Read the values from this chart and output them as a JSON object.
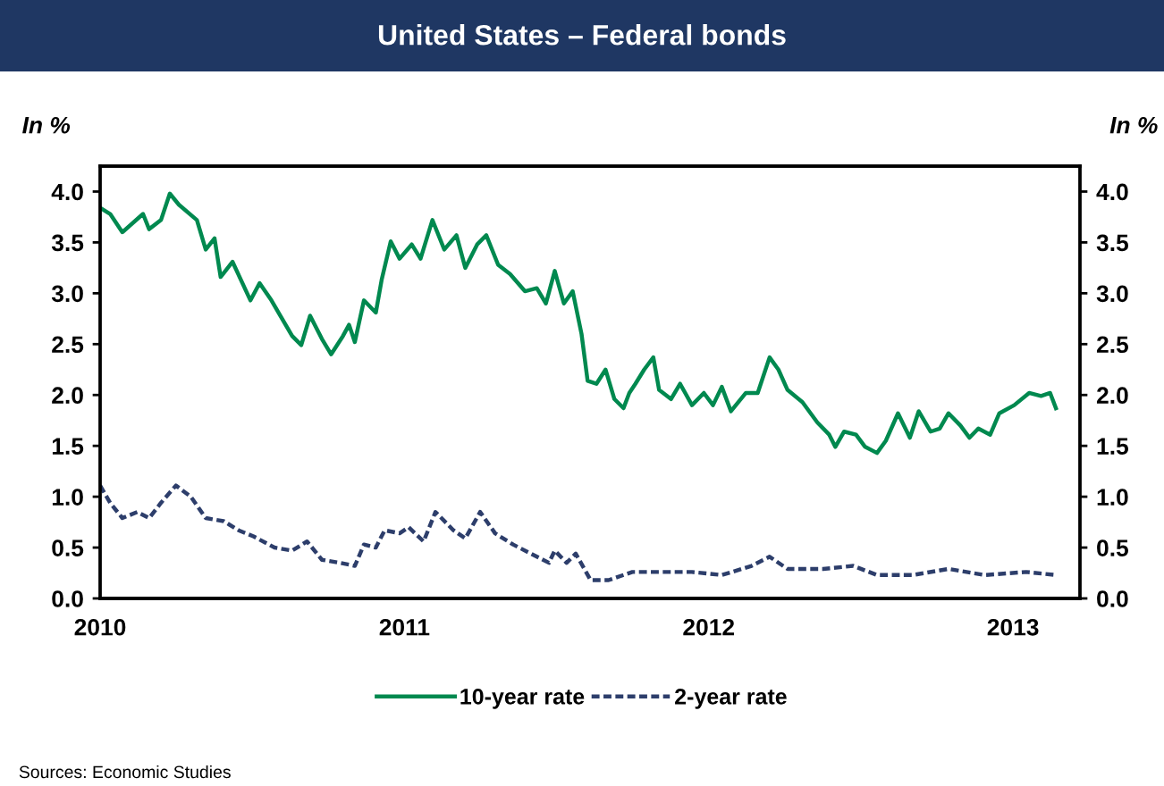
{
  "chart_data": {
    "type": "line",
    "title": "United States – Federal bonds",
    "ylabel": "In %",
    "y2label": "In %",
    "xlim": [
      2010,
      2013.22
    ],
    "xticks": [
      2010,
      2011,
      2012,
      2013
    ],
    "ylim": [
      0,
      4.25
    ],
    "yticks": [
      {
        "value": 0,
        "label": "0.0"
      },
      {
        "value": 0.5,
        "label": "0.5"
      },
      {
        "value": 1,
        "label": "1.0"
      },
      {
        "value": 1.5,
        "label": "1.5"
      },
      {
        "value": 2,
        "label": "2.0"
      },
      {
        "value": 2.5,
        "label": "2.5"
      },
      {
        "value": 3,
        "label": "3.0"
      },
      {
        "value": 3.5,
        "label": "3.5"
      },
      {
        "value": 4,
        "label": "4.0"
      }
    ],
    "y2lim": [
      0,
      4.25
    ],
    "y2ticks": [
      {
        "value": 0,
        "label": "0.0"
      },
      {
        "value": 0.5,
        "label": "0.5"
      },
      {
        "value": 1,
        "label": "1.0"
      },
      {
        "value": 1.5,
        "label": "1.5"
      },
      {
        "value": 2,
        "label": "2.0"
      },
      {
        "value": 2.5,
        "label": "2.5"
      },
      {
        "value": 3,
        "label": "3.0"
      },
      {
        "value": 3.5,
        "label": "3.5"
      },
      {
        "value": 4,
        "label": "4.0"
      }
    ],
    "grid": false,
    "legend": "bottom",
    "marker": "none",
    "annotations": [
      "Sources: Economic Studies"
    ],
    "series": [
      {
        "name": "10-year rate",
        "color": "#00894f",
        "line_style": "solid",
        "x": [
          2010.0,
          2010.033,
          2010.073,
          2010.141,
          2010.161,
          2010.2,
          2010.229,
          2010.259,
          2010.318,
          2010.347,
          2010.376,
          2010.396,
          2010.435,
          2010.494,
          2010.524,
          2010.563,
          2010.592,
          2010.631,
          2010.661,
          2010.69,
          2010.729,
          2010.759,
          2010.798,
          2010.818,
          2010.837,
          2010.867,
          2010.906,
          2010.925,
          2010.955,
          2010.984,
          2011.024,
          2011.053,
          2011.092,
          2011.131,
          2011.171,
          2011.2,
          2011.239,
          2011.269,
          2011.308,
          2011.347,
          2011.396,
          2011.435,
          2011.465,
          2011.494,
          2011.524,
          2011.553,
          2011.582,
          2011.602,
          2011.631,
          2011.661,
          2011.69,
          2011.72,
          2011.739,
          2011.759,
          2011.788,
          2011.818,
          2011.837,
          2011.876,
          2011.906,
          2011.945,
          2011.984,
          2012.014,
          2012.043,
          2012.073,
          2012.122,
          2012.161,
          2012.2,
          2012.229,
          2012.259,
          2012.308,
          2012.357,
          2012.396,
          2012.416,
          2012.445,
          2012.484,
          2012.514,
          2012.553,
          2012.582,
          2012.622,
          2012.661,
          2012.69,
          2012.729,
          2012.759,
          2012.788,
          2012.827,
          2012.857,
          2012.886,
          2012.925,
          2012.955,
          2013.004,
          2013.053,
          2013.092,
          2013.122,
          2013.141
        ],
        "values": [
          3.84,
          3.78,
          3.6,
          3.78,
          3.63,
          3.72,
          3.98,
          3.87,
          3.72,
          3.43,
          3.54,
          3.16,
          3.31,
          2.93,
          3.1,
          2.93,
          2.78,
          2.58,
          2.49,
          2.78,
          2.55,
          2.4,
          2.58,
          2.69,
          2.52,
          2.93,
          2.81,
          3.13,
          3.51,
          3.34,
          3.48,
          3.34,
          3.72,
          3.43,
          3.57,
          3.25,
          3.48,
          3.57,
          3.28,
          3.19,
          3.02,
          3.05,
          2.9,
          3.22,
          2.9,
          3.02,
          2.6,
          2.14,
          2.11,
          2.25,
          1.96,
          1.87,
          2.02,
          2.11,
          2.25,
          2.37,
          2.05,
          1.96,
          2.11,
          1.9,
          2.02,
          1.9,
          2.08,
          1.84,
          2.02,
          2.02,
          2.37,
          2.25,
          2.05,
          1.93,
          1.73,
          1.61,
          1.49,
          1.64,
          1.61,
          1.49,
          1.43,
          1.55,
          1.82,
          1.58,
          1.84,
          1.64,
          1.67,
          1.82,
          1.7,
          1.58,
          1.67,
          1.61,
          1.82,
          1.9,
          2.02,
          1.99,
          2.02,
          1.87
        ]
      },
      {
        "name": "2-year rate",
        "color": "#2d3e6b",
        "line_style": "dashed",
        "x": [
          2010.0,
          2010.033,
          2010.073,
          2010.122,
          2010.161,
          2010.2,
          2010.249,
          2010.298,
          2010.347,
          2010.406,
          2010.455,
          2010.504,
          2010.573,
          2010.631,
          2010.68,
          2010.729,
          2010.788,
          2010.837,
          2010.867,
          2010.906,
          2010.935,
          2010.984,
          2011.014,
          2011.063,
          2011.102,
          2011.161,
          2011.2,
          2011.249,
          2011.298,
          2011.357,
          2011.416,
          2011.475,
          2011.494,
          2011.533,
          2011.563,
          2011.612,
          2011.671,
          2011.749,
          2011.827,
          2011.945,
          2012.043,
          2012.141,
          2012.2,
          2012.259,
          2012.376,
          2012.475,
          2012.553,
          2012.671,
          2012.788,
          2012.906,
          2013.043,
          2013.141
        ],
        "values": [
          1.11,
          0.94,
          0.79,
          0.85,
          0.79,
          0.94,
          1.11,
          1.0,
          0.79,
          0.76,
          0.67,
          0.61,
          0.5,
          0.47,
          0.56,
          0.38,
          0.35,
          0.32,
          0.53,
          0.5,
          0.67,
          0.64,
          0.7,
          0.56,
          0.85,
          0.67,
          0.59,
          0.85,
          0.64,
          0.53,
          0.44,
          0.35,
          0.47,
          0.35,
          0.44,
          0.18,
          0.18,
          0.26,
          0.26,
          0.26,
          0.23,
          0.32,
          0.41,
          0.29,
          0.29,
          0.32,
          0.23,
          0.23,
          0.29,
          0.23,
          0.26,
          0.23
        ]
      }
    ]
  }
}
